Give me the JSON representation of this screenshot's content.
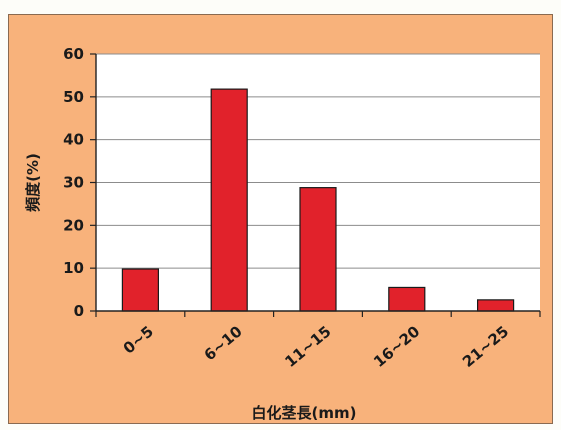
{
  "chart_data": {
    "type": "bar",
    "title": "",
    "xlabel": "白化茎長(mm)",
    "ylabel": "頻度(%)",
    "categories": [
      "0~5",
      "6~10",
      "11~15",
      "16~20",
      "21~25"
    ],
    "values": [
      9.8,
      51.8,
      28.8,
      5.5,
      2.6
    ],
    "ylim": [
      0,
      60
    ],
    "yticks": [
      0,
      10,
      20,
      30,
      40,
      50,
      60
    ],
    "grid": true,
    "bar_color": "#e1222b",
    "plot_background": "#ffffff",
    "frame_background": "#f8b27b"
  }
}
